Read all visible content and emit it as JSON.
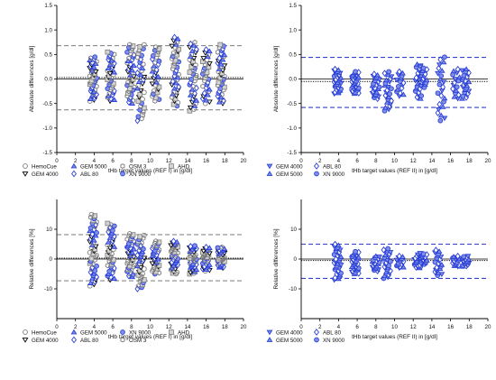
{
  "colors": {
    "gray": "#7a7a7a",
    "gray_fill": "#d4d4d4",
    "blue": "#2a3fd6",
    "blue_fill": "#7f8fe8",
    "dashed_gray": "#8a8a8a",
    "dashed_blue": "#3344cc",
    "axis": "#000000"
  },
  "chart_data": [
    {
      "id": "top-left",
      "type": "scatter",
      "ylabel": "Absolute differences [g/dl]",
      "xlabel": "tHb target values (REF I) in [g/dl]",
      "xlim": [
        0,
        20
      ],
      "ylim": [
        -1.5,
        1.5
      ],
      "xticks": [
        "0",
        "2",
        "4",
        "6",
        "8",
        "10",
        "12",
        "14",
        "16",
        "18",
        "20"
      ],
      "yticks": [
        "-1.5",
        "-1.0",
        "-0.5",
        "0.0",
        "0.5",
        "1.0",
        "1.5"
      ],
      "ytick_values": [
        -1.5,
        -1.0,
        -0.5,
        0.0,
        0.5,
        1.0,
        1.5
      ],
      "hlines": [
        {
          "value": 0.68,
          "style": "dashed",
          "color": "gray"
        },
        {
          "value": -0.63,
          "style": "dashed",
          "color": "gray"
        },
        {
          "value": 0.03,
          "style": "dotted",
          "color": "black"
        },
        {
          "value": 0.0,
          "style": "solid",
          "color": "black"
        }
      ],
      "series": [
        {
          "name": "HemoCue",
          "marker": "circle-open",
          "color": "gray"
        },
        {
          "name": "GEM 4000",
          "marker": "tri-down",
          "color": "black"
        },
        {
          "name": "GEM 5000",
          "marker": "tri-up-open",
          "color": "blue"
        },
        {
          "name": "ABL 80",
          "marker": "diamond",
          "color": "blue"
        },
        {
          "name": "OSM 3",
          "marker": "hexagon-open",
          "color": "gray"
        },
        {
          "name": "XN 9000",
          "marker": "circle-blue",
          "color": "blue"
        },
        {
          "name": "AHD",
          "marker": "square-open",
          "color": "gray"
        }
      ],
      "legend_order": [
        "HemoCue",
        "GEM 5000",
        "OSM 3",
        "AHD",
        "GEM 4000",
        "ABL 80",
        "XN 9000"
      ],
      "legend_columns": 4,
      "legend_position": "bottom-left",
      "clusters": [
        {
          "x": 3.9,
          "min": -0.45,
          "max": 0.45,
          "n": 10
        },
        {
          "x": 5.8,
          "min": -0.45,
          "max": 0.55,
          "n": 10
        },
        {
          "x": 7.9,
          "min": -0.5,
          "max": 0.7,
          "n": 10
        },
        {
          "x": 9.0,
          "min": -0.85,
          "max": 0.7,
          "n": 9
        },
        {
          "x": 10.6,
          "min": -0.45,
          "max": 0.65,
          "n": 8
        },
        {
          "x": 12.7,
          "min": -0.55,
          "max": 0.85,
          "n": 10
        },
        {
          "x": 14.6,
          "min": -0.65,
          "max": 0.75,
          "n": 10
        },
        {
          "x": 16.0,
          "min": -0.5,
          "max": 0.6,
          "n": 8
        },
        {
          "x": 17.6,
          "min": -0.5,
          "max": 0.7,
          "n": 10
        }
      ]
    },
    {
      "id": "top-right",
      "type": "scatter",
      "ylabel": "Absolute differences [g/dl]",
      "xlabel": "tHb target values (REF II) in [g/dl]",
      "xlim": [
        0,
        20
      ],
      "ylim": [
        -1.5,
        1.5
      ],
      "xticks": [
        "0",
        "2",
        "4",
        "6",
        "8",
        "10",
        "12",
        "14",
        "16",
        "18",
        "20"
      ],
      "yticks": [
        "-1.5",
        "-1.0",
        "-0.5",
        "0.0",
        "0.5",
        "1.0",
        "1.5"
      ],
      "ytick_values": [
        -1.5,
        -1.0,
        -0.5,
        0.0,
        0.5,
        1.0,
        1.5
      ],
      "hlines": [
        {
          "value": 0.44,
          "style": "dashed",
          "color": "blue"
        },
        {
          "value": -0.58,
          "style": "dashed",
          "color": "blue"
        },
        {
          "value": -0.05,
          "style": "dotted",
          "color": "black"
        },
        {
          "value": 0.0,
          "style": "solid",
          "color": "black"
        }
      ],
      "series": [
        {
          "name": "GEM 4000",
          "marker": "tri-down",
          "color": "blue"
        },
        {
          "name": "GEM 5000",
          "marker": "tri-up-open",
          "color": "blue"
        },
        {
          "name": "ABL 80",
          "marker": "diamond",
          "color": "blue"
        },
        {
          "name": "XN 9000",
          "marker": "circle-blue",
          "color": "blue"
        }
      ],
      "legend_order": [
        "GEM 4000",
        "ABL 80",
        "GEM 5000",
        "XN 9000"
      ],
      "legend_columns": 2,
      "legend_position": "bottom-left",
      "clusters": [
        {
          "x": 3.9,
          "min": -0.3,
          "max": 0.2,
          "n": 8
        },
        {
          "x": 5.8,
          "min": -0.3,
          "max": 0.15,
          "n": 8
        },
        {
          "x": 8.0,
          "min": -0.4,
          "max": 0.1,
          "n": 6
        },
        {
          "x": 9.3,
          "min": -0.65,
          "max": 0.15,
          "n": 6
        },
        {
          "x": 10.6,
          "min": -0.35,
          "max": 0.15,
          "n": 4
        },
        {
          "x": 12.6,
          "min": -0.4,
          "max": 0.3,
          "n": 6
        },
        {
          "x": 13.1,
          "min": -0.2,
          "max": 0.25,
          "n": 4
        },
        {
          "x": 15.0,
          "min": -0.85,
          "max": 0.45,
          "n": 6
        },
        {
          "x": 16.6,
          "min": -0.4,
          "max": 0.2,
          "n": 4
        },
        {
          "x": 17.6,
          "min": -0.4,
          "max": 0.2,
          "n": 6
        }
      ]
    },
    {
      "id": "bottom-left",
      "type": "scatter",
      "ylabel": "Relative differences [%]",
      "xlabel": "tHb target values (REF I) in [g/dl]",
      "xlim": [
        0,
        20
      ],
      "ylim": [
        -20,
        20
      ],
      "xticks": [
        "0",
        "2",
        "4",
        "6",
        "8",
        "10",
        "12",
        "14",
        "16",
        "18",
        "20"
      ],
      "yticks": [
        "-10",
        "0",
        "10"
      ],
      "ytick_values": [
        -10,
        0,
        10
      ],
      "hlines": [
        {
          "value": 8.2,
          "style": "dashed",
          "color": "gray"
        },
        {
          "value": -7.3,
          "style": "dashed",
          "color": "gray"
        },
        {
          "value": 0.3,
          "style": "dotted",
          "color": "black"
        },
        {
          "value": 0.0,
          "style": "solid",
          "color": "black"
        }
      ],
      "series": [
        {
          "name": "HemoCue",
          "marker": "circle-open",
          "color": "gray"
        },
        {
          "name": "GEM 4000",
          "marker": "tri-down",
          "color": "black"
        },
        {
          "name": "GEM 5000",
          "marker": "tri-up-open",
          "color": "blue"
        },
        {
          "name": "ABL 80",
          "marker": "diamond",
          "color": "blue"
        },
        {
          "name": "XN 9000",
          "marker": "circle-blue",
          "color": "blue"
        },
        {
          "name": "OSM 3",
          "marker": "hexagon-open",
          "color": "gray"
        },
        {
          "name": "AHD",
          "marker": "square-open",
          "color": "gray"
        }
      ],
      "legend_order": [
        "HemoCue",
        "GEM 5000",
        "XN 9000",
        "AHD",
        "GEM 4000",
        "ABL 80",
        "OSM 3"
      ],
      "legend_columns": 4,
      "legend_position": "bottom-left",
      "clusters": [
        {
          "x": 3.9,
          "min": -9,
          "max": 15,
          "n": 12
        },
        {
          "x": 5.8,
          "min": -7,
          "max": 12,
          "n": 10
        },
        {
          "x": 7.9,
          "min": -6,
          "max": 8.5,
          "n": 10
        },
        {
          "x": 9.0,
          "min": -10,
          "max": 8,
          "n": 9
        },
        {
          "x": 10.6,
          "min": -5,
          "max": 6,
          "n": 8
        },
        {
          "x": 12.6,
          "min": -5,
          "max": 6,
          "n": 10
        },
        {
          "x": 14.6,
          "min": -5,
          "max": 4.5,
          "n": 10
        },
        {
          "x": 16.0,
          "min": -4,
          "max": 4,
          "n": 8
        },
        {
          "x": 17.6,
          "min": -3,
          "max": 4,
          "n": 9
        }
      ]
    },
    {
      "id": "bottom-right",
      "type": "scatter",
      "ylabel": "Relative differences [%]",
      "xlabel": "tHb target values (REF II) in [g/dl]",
      "xlim": [
        0,
        20
      ],
      "ylim": [
        -20,
        20
      ],
      "xticks": [
        "0",
        "2",
        "4",
        "6",
        "8",
        "10",
        "12",
        "14",
        "16",
        "18",
        "20"
      ],
      "yticks": [
        "-10",
        "0",
        "10"
      ],
      "ytick_values": [
        -10,
        0,
        10
      ],
      "hlines": [
        {
          "value": 5.0,
          "style": "dashed",
          "color": "blue"
        },
        {
          "value": -6.5,
          "style": "dashed",
          "color": "blue"
        },
        {
          "value": -0.5,
          "style": "dotted",
          "color": "black"
        },
        {
          "value": 0.0,
          "style": "solid",
          "color": "black"
        }
      ],
      "series": [
        {
          "name": "GEM 4000",
          "marker": "tri-down",
          "color": "blue"
        },
        {
          "name": "GEM 5000",
          "marker": "tri-up-open",
          "color": "blue"
        },
        {
          "name": "ABL 80",
          "marker": "diamond",
          "color": "blue"
        },
        {
          "name": "XN 9000",
          "marker": "circle-blue",
          "color": "blue"
        }
      ],
      "legend_order": [
        "GEM 4000",
        "ABL 80",
        "GEM 5000",
        "XN 9000"
      ],
      "legend_columns": 2,
      "legend_position": "bottom-left",
      "clusters": [
        {
          "x": 3.9,
          "min": -7,
          "max": 5,
          "n": 8
        },
        {
          "x": 5.8,
          "min": -5,
          "max": 2.5,
          "n": 8
        },
        {
          "x": 8.0,
          "min": -4,
          "max": 1,
          "n": 5
        },
        {
          "x": 9.2,
          "min": -6.5,
          "max": 3.5,
          "n": 6
        },
        {
          "x": 10.6,
          "min": -3,
          "max": 1,
          "n": 4
        },
        {
          "x": 12.5,
          "min": -3,
          "max": 1.5,
          "n": 5
        },
        {
          "x": 13.1,
          "min": -2,
          "max": 2,
          "n": 4
        },
        {
          "x": 14.7,
          "min": -5.5,
          "max": 3,
          "n": 5
        },
        {
          "x": 16.6,
          "min": -2.5,
          "max": 1,
          "n": 4
        },
        {
          "x": 17.6,
          "min": -2.5,
          "max": 1,
          "n": 5
        }
      ]
    }
  ]
}
